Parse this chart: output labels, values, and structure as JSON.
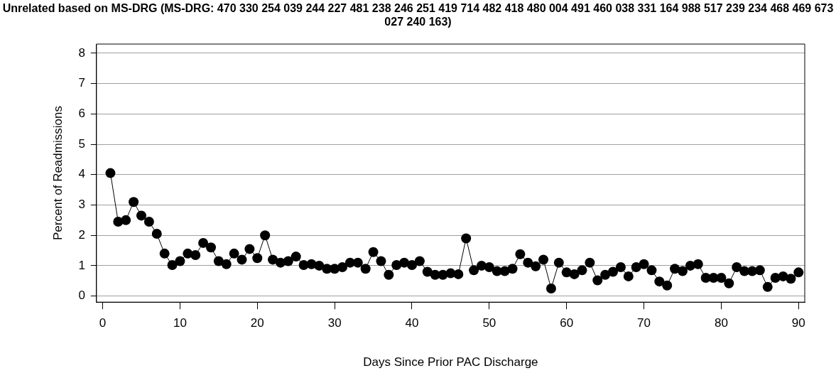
{
  "chart_data": {
    "type": "line",
    "title": "Unrelated based on MS-DRG (MS-DRG: 470 330 254 039 244 227 481 238 246 251 419 714 482 418 480 004 491 460 038 331 164 988 517 239 234 468 469 673 027 240 163)",
    "xlabel": "Days Since Prior PAC Discharge",
    "ylabel": "Percent of Readmissions",
    "x": [
      1,
      2,
      3,
      4,
      5,
      6,
      7,
      8,
      9,
      10,
      11,
      12,
      13,
      14,
      15,
      16,
      17,
      18,
      19,
      20,
      21,
      22,
      23,
      24,
      25,
      26,
      27,
      28,
      29,
      30,
      31,
      32,
      33,
      34,
      35,
      36,
      37,
      38,
      39,
      40,
      41,
      42,
      43,
      44,
      45,
      46,
      47,
      48,
      49,
      50,
      51,
      52,
      53,
      54,
      55,
      56,
      57,
      58,
      59,
      60,
      61,
      62,
      63,
      64,
      65,
      66,
      67,
      68,
      69,
      70,
      71,
      72,
      73,
      74,
      75,
      76,
      77,
      78,
      79,
      80,
      81,
      82,
      83,
      84,
      85,
      86,
      87,
      88,
      89,
      90
    ],
    "series": [
      {
        "color": "#000000",
        "values": [
          4.05,
          2.45,
          2.5,
          3.1,
          2.65,
          2.45,
          2.05,
          1.4,
          1.02,
          1.15,
          1.4,
          1.35,
          1.75,
          1.6,
          1.15,
          1.05,
          1.4,
          1.2,
          1.55,
          1.25,
          2.0,
          1.2,
          1.1,
          1.15,
          1.3,
          1.02,
          1.05,
          1.0,
          0.9,
          0.9,
          0.95,
          1.1,
          1.1,
          0.9,
          1.45,
          1.15,
          0.7,
          1.02,
          1.1,
          1.02,
          1.15,
          0.8,
          0.7,
          0.7,
          0.75,
          0.72,
          1.9,
          0.85,
          1.0,
          0.95,
          0.82,
          0.82,
          0.9,
          1.38,
          1.1,
          0.98,
          1.2,
          0.25,
          1.1,
          0.78,
          0.72,
          0.85,
          1.1,
          0.52,
          0.7,
          0.8,
          0.95,
          0.65,
          0.95,
          1.05,
          0.85,
          0.48,
          0.35,
          0.9,
          0.82,
          1.0,
          1.05,
          0.6,
          0.6,
          0.6,
          0.42,
          0.95,
          0.82,
          0.82,
          0.85,
          0.3,
          0.6,
          0.65,
          0.57,
          0.78
        ]
      }
    ],
    "xlim": [
      -0.8,
      90.8
    ],
    "xticks": [
      0,
      10,
      20,
      30,
      40,
      50,
      60,
      70,
      80,
      90
    ],
    "ylim": [
      -0.2,
      8.3
    ],
    "yticks": [
      0,
      1,
      2,
      3,
      4,
      5,
      6,
      7,
      8
    ],
    "grid": "y",
    "legend": false,
    "marker": "circle",
    "line_style": "solid"
  }
}
